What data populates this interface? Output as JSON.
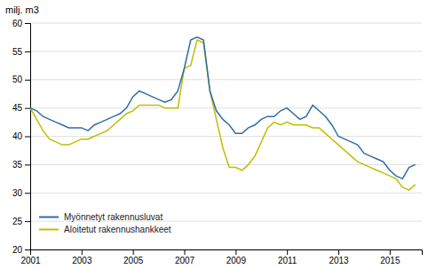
{
  "chart_data": {
    "type": "line",
    "title": "milj. m3",
    "x": [
      2001.0,
      2001.25,
      2001.5,
      2001.75,
      2002.0,
      2002.25,
      2002.5,
      2002.75,
      2003.0,
      2003.25,
      2003.5,
      2003.75,
      2004.0,
      2004.25,
      2004.5,
      2004.75,
      2005.0,
      2005.25,
      2005.5,
      2005.75,
      2006.0,
      2006.25,
      2006.5,
      2006.75,
      2007.0,
      2007.25,
      2007.5,
      2007.75,
      2008.0,
      2008.25,
      2008.5,
      2008.75,
      2009.0,
      2009.25,
      2009.5,
      2009.75,
      2010.0,
      2010.25,
      2010.5,
      2010.75,
      2011.0,
      2011.25,
      2011.5,
      2011.75,
      2012.0,
      2012.25,
      2012.5,
      2012.75,
      2013.0,
      2013.25,
      2013.5,
      2013.75,
      2014.0,
      2014.25,
      2014.5,
      2014.75,
      2015.0,
      2015.25,
      2015.5,
      2015.75,
      2016.0
    ],
    "series": [
      {
        "name": "Myönnetyt rakennusluvat",
        "color": "#2E6DA4",
        "values": [
          45.0,
          44.5,
          43.5,
          43.0,
          42.5,
          42.0,
          41.5,
          41.5,
          41.5,
          41.0,
          42.0,
          42.5,
          43.0,
          43.5,
          44.0,
          45.0,
          47.0,
          48.0,
          47.5,
          47.0,
          46.5,
          46.0,
          46.5,
          48.0,
          52.0,
          57.0,
          57.5,
          57.0,
          48.0,
          44.5,
          43.0,
          42.0,
          40.5,
          40.5,
          41.5,
          42.0,
          43.0,
          43.5,
          43.5,
          44.5,
          45.0,
          44.0,
          43.0,
          43.5,
          45.5,
          44.5,
          43.5,
          42.0,
          40.0,
          39.5,
          39.0,
          38.5,
          37.0,
          36.5,
          36.0,
          35.5,
          34.0,
          33.0,
          32.5,
          34.5,
          35.0
        ]
      },
      {
        "name": "Aloitetut rakennushankkeet",
        "color": "#BEBE00",
        "values": [
          45.0,
          43.0,
          41.0,
          39.5,
          39.0,
          38.5,
          38.5,
          39.0,
          39.5,
          39.5,
          40.0,
          40.5,
          41.0,
          42.0,
          43.0,
          44.0,
          44.5,
          45.5,
          45.5,
          45.5,
          45.5,
          45.0,
          45.0,
          45.0,
          52.0,
          52.5,
          57.0,
          56.5,
          48.0,
          43.0,
          38.0,
          34.5,
          34.5,
          34.0,
          35.0,
          36.5,
          39.0,
          41.5,
          42.5,
          42.0,
          42.5,
          42.0,
          42.0,
          42.0,
          41.5,
          41.5,
          40.5,
          39.5,
          38.5,
          37.5,
          36.5,
          35.5,
          35.0,
          34.5,
          34.0,
          33.5,
          33.0,
          32.5,
          31.0,
          30.5,
          31.5
        ]
      }
    ],
    "xlim": [
      2001,
      2016.25
    ],
    "xticks": [
      2001,
      2003,
      2005,
      2007,
      2009,
      2011,
      2013,
      2015
    ],
    "ylim": [
      20,
      60
    ],
    "yticks": [
      20,
      25,
      30,
      35,
      40,
      45,
      50,
      55,
      60
    ],
    "grid": "y",
    "legend": "lower left"
  }
}
